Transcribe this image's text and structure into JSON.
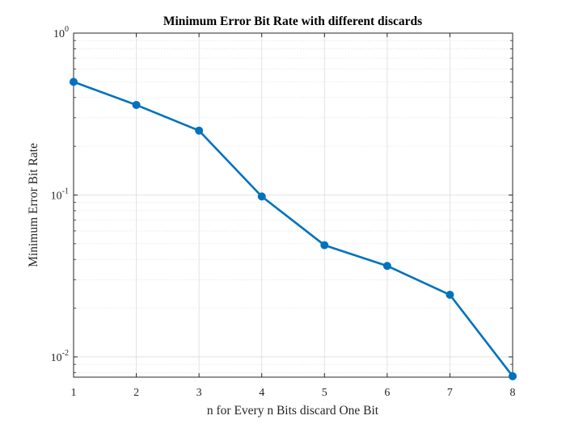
{
  "chart_data": {
    "type": "line",
    "title": "Minimum Error Bit Rate with different discards",
    "xlabel": "n for Every n Bits discard One Bit",
    "ylabel": "Minimum Error Bit Rate",
    "xlim": [
      1,
      8
    ],
    "ylim": [
      0.0075,
      1
    ],
    "yscale": "log",
    "grid": true,
    "minor_grid": true,
    "x_ticks": [
      1,
      2,
      3,
      4,
      5,
      6,
      7,
      8
    ],
    "x_tick_labels": [
      "1",
      "2",
      "3",
      "4",
      "5",
      "6",
      "7",
      "8"
    ],
    "y_ticks": [
      {
        "value": 1,
        "base": "10",
        "exp": "0"
      },
      {
        "value": 0.1,
        "base": "10",
        "exp": "-1"
      },
      {
        "value": 0.01,
        "base": "10",
        "exp": "-2"
      }
    ],
    "series": [
      {
        "color": "#0072BD",
        "marker": "circle",
        "x": [
          1,
          2,
          3,
          4,
          5,
          6,
          7,
          8
        ],
        "y": [
          0.5,
          0.36,
          0.25,
          0.098,
          0.049,
          0.0365,
          0.0242,
          0.0076
        ]
      }
    ]
  }
}
